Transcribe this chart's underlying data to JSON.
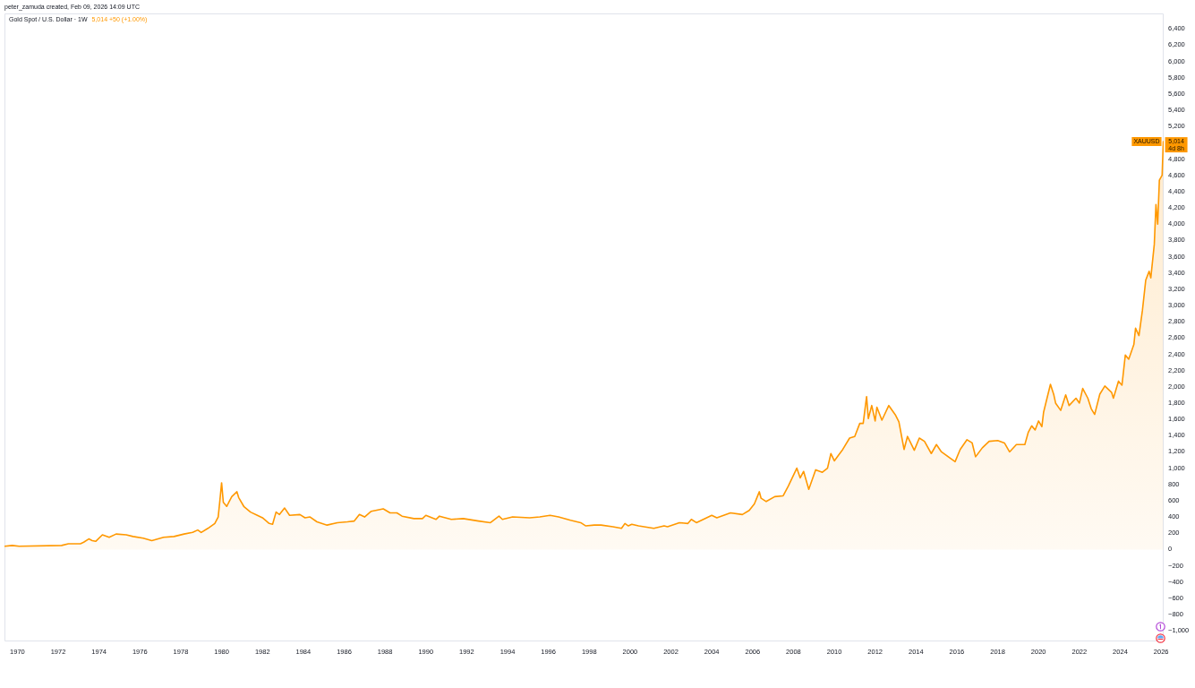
{
  "chart_data": {
    "type": "area",
    "title": "Gold Spot / U.S. Dollar · 1W",
    "subtitle": "5,014 +50 (+1.00%)",
    "annotations": [
      "peter_zamuda created, Feb 09, 2026 14:09 UTC",
      {
        "text": "5,014",
        "x": "2026-02-09",
        "y": 5014
      },
      {
        "text": "4d 8h",
        "x": "2026-02-09",
        "y": 5014
      }
    ],
    "x": [
      "1969-05-20",
      "1969-10",
      "1970-02",
      "1972-03",
      "1972-07",
      "1973-02",
      "1973-04",
      "1973-07",
      "1973-09",
      "1973-11",
      "1974-03",
      "1974-07",
      "1974-11",
      "1975-05",
      "1975-09",
      "1976-03",
      "1976-08",
      "1977-03",
      "1977-09",
      "1978-03",
      "1978-08",
      "1978-11",
      "1979-01",
      "1979-05",
      "1979-09",
      "1979-11",
      "1979-12",
      "1980-01",
      "1980-02",
      "1980-04",
      "1980-07",
      "1980-10",
      "1980-11",
      "1981-02",
      "1981-06",
      "1981-10",
      "1982-01",
      "1982-05",
      "1982-07",
      "1982-09",
      "1982-11",
      "1983-02",
      "1983-05",
      "1983-11",
      "1984-02",
      "1984-05",
      "1984-09",
      "1985-03",
      "1985-09",
      "1986-03",
      "1986-07",
      "1986-10",
      "1987-01",
      "1987-05",
      "1987-12",
      "1988-04",
      "1988-08",
      "1988-11",
      "1989-06",
      "1989-11",
      "1990-01",
      "1990-07",
      "1990-09",
      "1991-04",
      "1991-11",
      "1992-08",
      "1993-03",
      "1993-08",
      "1993-10",
      "1994-04",
      "1995-02",
      "1995-08",
      "1996-02",
      "1996-07",
      "1997-02",
      "1997-08",
      "1997-11",
      "1998-04",
      "1998-08",
      "1999-03",
      "1999-08",
      "1999-10",
      "1999-12",
      "2000-02",
      "2000-06",
      "2001-03",
      "2001-09",
      "2001-11",
      "2002-06",
      "2002-11",
      "2003-01",
      "2003-04",
      "2004-01",
      "2004-04",
      "2004-12",
      "2005-07",
      "2005-11",
      "2006-02",
      "2006-05",
      "2006-06",
      "2006-09",
      "2007-02",
      "2007-07",
      "2007-10",
      "2008-03",
      "2008-05",
      "2008-07",
      "2008-10",
      "2009-02",
      "2009-06",
      "2009-09",
      "2009-11",
      "2010-01",
      "2010-06",
      "2010-10",
      "2011-01",
      "2011-04",
      "2011-06",
      "2011-08",
      "2011-09",
      "2011-11",
      "2012-01",
      "2012-02",
      "2012-05",
      "2012-09",
      "2013-01",
      "2013-03",
      "2013-06",
      "2013-08",
      "2013-12",
      "2014-03",
      "2014-06",
      "2014-10",
      "2015-01",
      "2015-04",
      "2015-12",
      "2016-03",
      "2016-07",
      "2016-10",
      "2016-12",
      "2017-04",
      "2017-08",
      "2018-01",
      "2018-05",
      "2018-08",
      "2018-12",
      "2019-05",
      "2019-07",
      "2019-09",
      "2019-11",
      "2020-01",
      "2020-03",
      "2020-04",
      "2020-08",
      "2020-10",
      "2020-11",
      "2021-02",
      "2021-05",
      "2021-07",
      "2021-11",
      "2022-01",
      "2022-03",
      "2022-06",
      "2022-08",
      "2022-10",
      "2023-01",
      "2023-04",
      "2023-08",
      "2023-09",
      "2023-12",
      "2024-02",
      "2024-04",
      "2024-06",
      "2024-09",
      "2024-10",
      "2024-12",
      "2025-02",
      "2025-04",
      "2025-06",
      "2025-07",
      "2025-09",
      "2025-10",
      "2025-11",
      "2025-12",
      "2026-01-19",
      "2026-02-09"
    ],
    "series": [
      {
        "name": "XAUUSD",
        "color": "#ff9800",
        "values": [
          40,
          50,
          40,
          50,
          70,
          70,
          90,
          130,
          110,
          100,
          180,
          150,
          190,
          180,
          160,
          140,
          110,
          150,
          160,
          190,
          210,
          240,
          210,
          260,
          320,
          400,
          600,
          820,
          580,
          530,
          650,
          710,
          640,
          530,
          460,
          420,
          390,
          320,
          310,
          460,
          430,
          510,
          420,
          430,
          390,
          400,
          340,
          300,
          330,
          340,
          350,
          430,
          400,
          470,
          500,
          450,
          450,
          410,
          380,
          380,
          420,
          370,
          410,
          370,
          380,
          350,
          330,
          410,
          370,
          400,
          390,
          400,
          420,
          400,
          360,
          330,
          290,
          300,
          300,
          280,
          260,
          320,
          290,
          310,
          290,
          260,
          290,
          280,
          330,
          320,
          370,
          330,
          420,
          390,
          450,
          430,
          480,
          560,
          710,
          630,
          590,
          650,
          660,
          780,
          1000,
          880,
          960,
          740,
          980,
          950,
          1000,
          1180,
          1090,
          1230,
          1370,
          1390,
          1550,
          1550,
          1880,
          1610,
          1770,
          1580,
          1750,
          1590,
          1770,
          1650,
          1570,
          1230,
          1390,
          1220,
          1370,
          1330,
          1180,
          1290,
          1200,
          1080,
          1230,
          1350,
          1310,
          1140,
          1250,
          1330,
          1340,
          1310,
          1200,
          1290,
          1290,
          1440,
          1520,
          1470,
          1580,
          1510,
          1690,
          2030,
          1900,
          1800,
          1710,
          1900,
          1770,
          1860,
          1800,
          1980,
          1860,
          1730,
          1660,
          1910,
          2010,
          1930,
          1860,
          2070,
          2020,
          2390,
          2340,
          2520,
          2720,
          2630,
          2940,
          3310,
          3420,
          3340,
          3750,
          4240,
          4000,
          4540,
          4600,
          5014
        ]
      }
    ],
    "xlim": [
      "1969-05-15",
      "2026-02-16"
    ],
    "xticks": [
      "1970",
      "1972",
      "1974",
      "1976",
      "1978",
      "1980",
      "1982",
      "1984",
      "1986",
      "1988",
      "1990",
      "1992",
      "1994",
      "1996",
      "1998",
      "2000",
      "2002",
      "2004",
      "2006",
      "2008",
      "2010",
      "2012",
      "2014",
      "2016",
      "2018",
      "2020",
      "2022",
      "2024",
      "2026"
    ],
    "ylim": [
      -1130,
      6590
    ],
    "yticks": [
      {
        "value": -1000,
        "label": "−1,000"
      },
      {
        "value": -800,
        "label": "−800"
      },
      {
        "value": -600,
        "label": "−600"
      },
      {
        "value": -400,
        "label": "−400"
      },
      {
        "value": -200,
        "label": "−200"
      },
      0,
      200,
      400,
      600,
      800,
      {
        "value": 1000,
        "label": "1,000"
      },
      {
        "value": 1200,
        "label": "1,200"
      },
      {
        "value": 1400,
        "label": "1,400"
      },
      {
        "value": 1600,
        "label": "1,600"
      },
      {
        "value": 1800,
        "label": "1,800"
      },
      {
        "value": 2000,
        "label": "2,000"
      },
      {
        "value": 2200,
        "label": "2,200"
      },
      {
        "value": 2400,
        "label": "2,400"
      },
      {
        "value": 2600,
        "label": "2,600"
      },
      {
        "value": 2800,
        "label": "2,800"
      },
      {
        "value": 3000,
        "label": "3,000"
      },
      {
        "value": 3200,
        "label": "3,200"
      },
      {
        "value": 3400,
        "label": "3,400"
      },
      {
        "value": 3600,
        "label": "3,600"
      },
      {
        "value": 3800,
        "label": "3,800"
      },
      {
        "value": 4000,
        "label": "4,000"
      },
      {
        "value": 4200,
        "label": "4,200"
      },
      {
        "value": 4400,
        "label": "4,400"
      },
      {
        "value": 4600,
        "label": "4,600"
      },
      {
        "value": 4800,
        "label": "4,800"
      },
      {
        "value": 5200,
        "label": "5,200"
      },
      {
        "value": 5400,
        "label": "5,400"
      },
      {
        "value": 5600,
        "label": "5,600"
      },
      {
        "value": 5800,
        "label": "5,800"
      },
      {
        "value": 6000,
        "label": "6,000"
      },
      {
        "value": 6200,
        "label": "6,200"
      },
      {
        "value": 6400,
        "label": "6,400"
      }
    ],
    "grid": false,
    "legend": false,
    "marker": "none",
    "line_style": "solid"
  }
}
